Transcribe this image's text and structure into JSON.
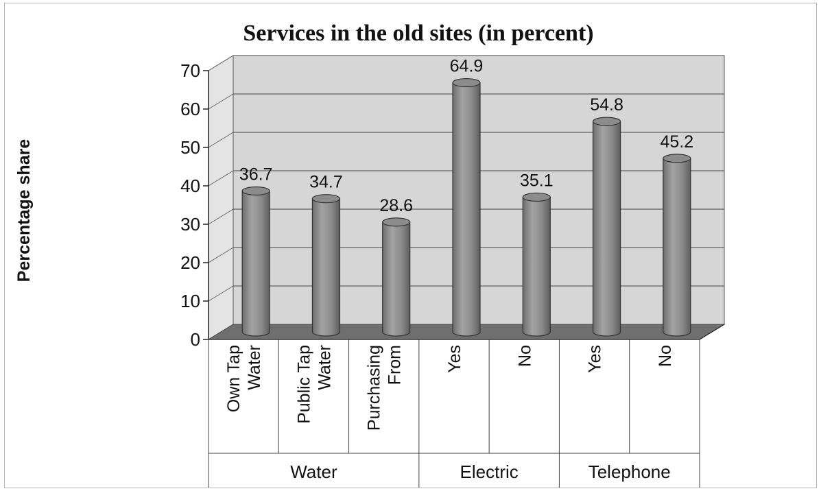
{
  "chart_data": {
    "type": "bar",
    "title": "Services in the old sites (in percent)",
    "xlabel": "",
    "ylabel": "Percentage share",
    "ylim": [
      0,
      70
    ],
    "yticks": [
      0,
      10,
      20,
      30,
      40,
      50,
      60,
      70
    ],
    "grid": true,
    "legend": "none",
    "bar_color": "#8c8c8c",
    "wall_color": "#d6d6d6",
    "floor_color": "#6f6f6f",
    "categories": [
      {
        "lines": [
          "Own Tap",
          "Water"
        ],
        "group": "Water"
      },
      {
        "lines": [
          "Public Tap",
          "Water"
        ],
        "group": "Water"
      },
      {
        "lines": [
          "Purchasing",
          "From"
        ],
        "group": "Water"
      },
      {
        "lines": [
          "Yes"
        ],
        "group": "Electric"
      },
      {
        "lines": [
          "No"
        ],
        "group": "Electric"
      },
      {
        "lines": [
          "Yes"
        ],
        "group": "Telephone"
      },
      {
        "lines": [
          "No"
        ],
        "group": "Telephone"
      }
    ],
    "groups": [
      {
        "name": "Water",
        "span": 3
      },
      {
        "name": "Electric",
        "span": 2
      },
      {
        "name": "Telephone",
        "span": 2
      }
    ],
    "values": [
      36.7,
      34.7,
      28.6,
      64.9,
      35.1,
      54.8,
      45.2
    ],
    "data_labels": [
      "36.7",
      "34.7",
      "28.6",
      "64.9",
      "35.1",
      "54.8",
      "45.2"
    ]
  }
}
